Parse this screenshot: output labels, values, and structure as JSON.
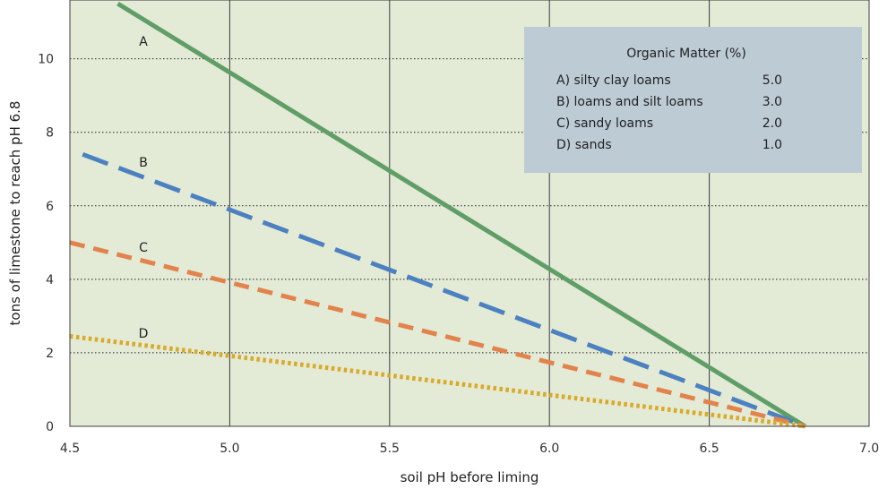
{
  "chart_data": {
    "type": "line",
    "title": "",
    "xlabel": "soil pH before liming",
    "ylabel": "tons of limestone to reach pH 6.8",
    "xlim": [
      4.5,
      7.0
    ],
    "ylim": [
      0,
      11.6
    ],
    "x_ticks": [
      "4.5",
      "5.0",
      "5.5",
      "6.0",
      "6.5",
      "7.0"
    ],
    "y_ticks": [
      "0",
      "2",
      "4",
      "6",
      "8",
      "10"
    ],
    "grid": "vertical solid lines at x ticks, dotted horizontal lines at y ticks",
    "background": "#e3ead6",
    "series": [
      {
        "name": "A",
        "x": [
          4.65,
          6.8
        ],
        "y": [
          11.5,
          0
        ],
        "color": "#5f9e66",
        "style": "solid"
      },
      {
        "name": "B",
        "x": [
          4.54,
          6.8
        ],
        "y": [
          7.4,
          0
        ],
        "color": "#4b81c0",
        "style": "long-dash"
      },
      {
        "name": "C",
        "x": [
          4.5,
          6.8
        ],
        "y": [
          5.0,
          0
        ],
        "color": "#e2834c",
        "style": "dash"
      },
      {
        "name": "D",
        "x": [
          4.5,
          6.8
        ],
        "y": [
          2.45,
          0
        ],
        "color": "#d9a927",
        "style": "dot"
      }
    ],
    "legend": {
      "title": "Organic Matter (%)",
      "placement": "top-right",
      "rows": [
        {
          "label": "A) silty clay loams",
          "value": "5.0"
        },
        {
          "label": "B) loams and silt loams",
          "value": "3.0"
        },
        {
          "label": "C) sandy loams",
          "value": "2.0"
        },
        {
          "label": "D) sands",
          "value": "1.0"
        }
      ]
    }
  }
}
